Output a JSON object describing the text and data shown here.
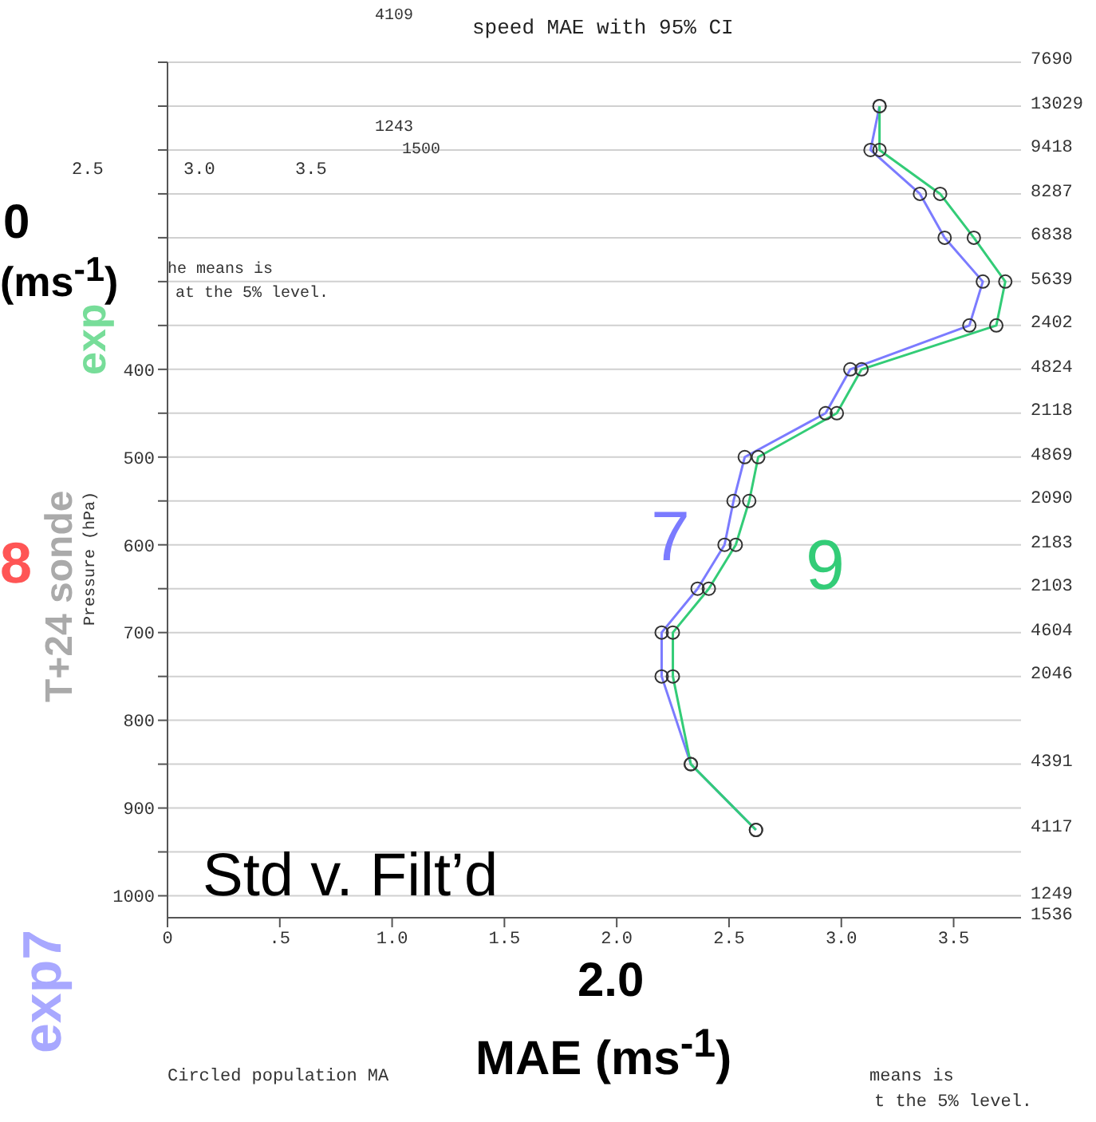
{
  "chart_data": {
    "type": "line",
    "title": "speed MAE with 95% CI",
    "xlabel": "MAE (ms$^{-1}$)",
    "ylabel": "Pressure (hPa)",
    "series": [
      {
        "name": "7",
        "color": "#7b7bff",
        "x": [
          3.17,
          3.13,
          3.35,
          3.46,
          3.63,
          3.57,
          3.04,
          2.93,
          2.57,
          2.52,
          2.48,
          2.36,
          2.2,
          2.2,
          2.33,
          2.62
        ],
        "values": [
          100,
          150,
          200,
          250,
          300,
          350,
          400,
          450,
          500,
          550,
          600,
          650,
          700,
          750,
          850,
          925
        ]
      },
      {
        "name": "9",
        "color": "#33cc77",
        "x": [
          3.17,
          3.17,
          3.44,
          3.59,
          3.73,
          3.69,
          3.09,
          2.98,
          2.63,
          2.59,
          2.53,
          2.41,
          2.25,
          2.25,
          2.33,
          2.62
        ],
        "values": [
          100,
          150,
          200,
          250,
          300,
          350,
          400,
          450,
          500,
          550,
          600,
          650,
          700,
          750,
          850,
          925
        ]
      }
    ],
    "xlim": [
      0,
      3.8
    ],
    "xticks": [
      {
        "value": 0,
        "label": "0"
      },
      {
        "value": 0.5,
        "label": ".5"
      },
      {
        "value": 1,
        "label": "1.0"
      },
      1.5,
      {
        "value": 2,
        "label": "2.0"
      },
      2.5,
      {
        "value": 3,
        "label": "3.0"
      },
      3.5
    ],
    "ylim": [
      1025,
      50
    ],
    "yticks": [
      {
        "value": 50,
        "label": null
      },
      {
        "value": 100,
        "label": null
      },
      {
        "value": 150,
        "label": null
      },
      {
        "value": 200,
        "label": null
      },
      {
        "value": 250,
        "label": null
      },
      {
        "value": 300,
        "label": null
      },
      {
        "value": 350,
        "label": null
      },
      400,
      {
        "value": 450,
        "label": null
      },
      500,
      {
        "value": 550,
        "label": null
      },
      600,
      {
        "value": 650,
        "label": null
      },
      700,
      {
        "value": 750,
        "label": null
      },
      800,
      {
        "value": 850,
        "label": null
      },
      900,
      {
        "value": 950,
        "label": null
      },
      1000
    ],
    "grid": "y",
    "marker": "circle",
    "line_style": "solid",
    "legend": false,
    "annotations": [
      "Std v. Filt’d",
      "2.0",
      "Circled population MA",
      "means is",
      "t the 5% level.",
      "exp7",
      "T+24 sonde",
      "8",
      "exp",
      "0",
      "(ms$^{-1}$)",
      "he means is",
      "at the 5% level.",
      "2.5",
      "3.0",
      "3.5",
      "4109",
      "1243",
      "1500",
      "7690",
      "13029",
      "9418",
      "8287",
      "6838",
      "5639",
      "2402",
      "4824",
      "2118",
      "4869",
      "2090",
      "2183",
      "2103",
      "4604",
      "2046",
      "4391",
      "4117",
      "1249",
      "1536"
    ]
  }
}
